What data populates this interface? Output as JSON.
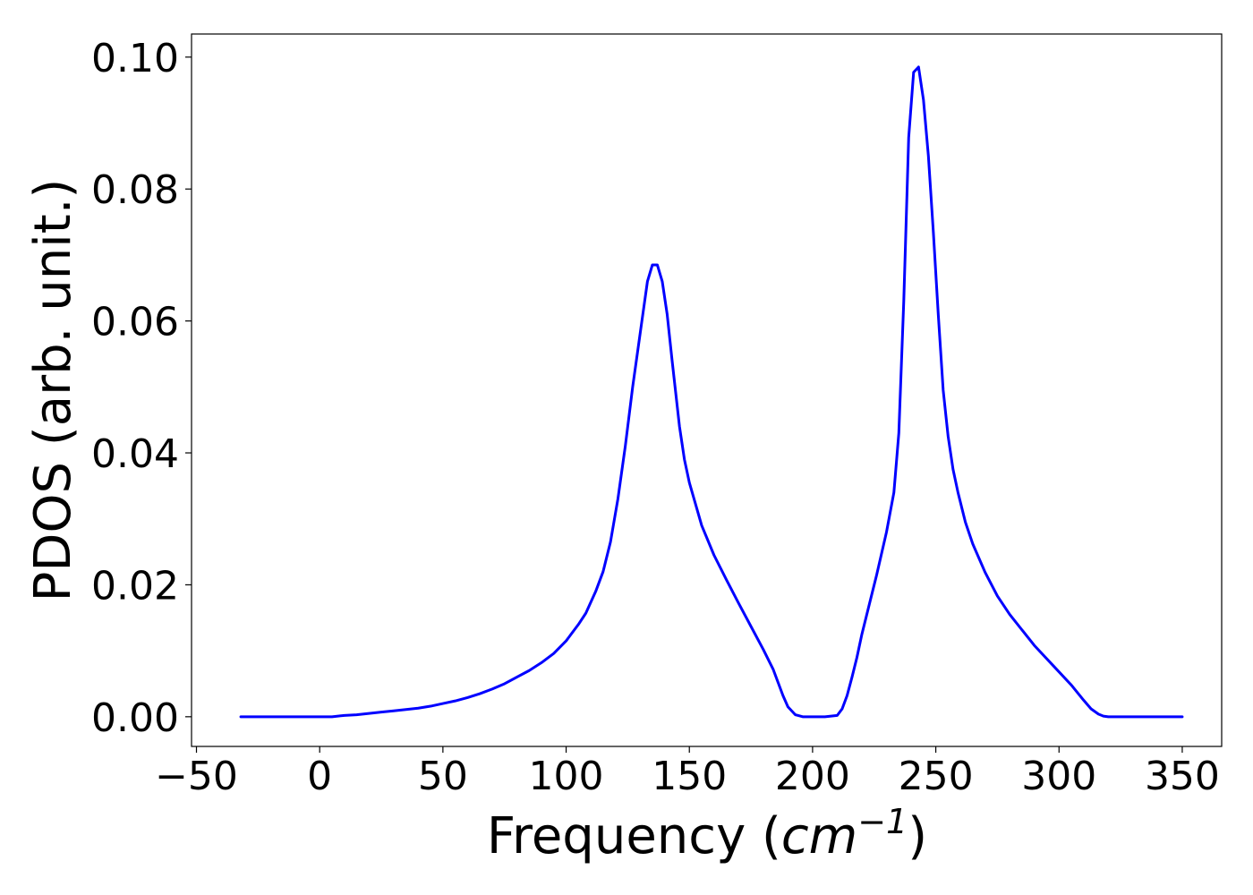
{
  "chart_data": {
    "type": "line",
    "title": "",
    "xlabel": {
      "prefix": "Frequency (",
      "unit_base": "cm",
      "unit_exponent": "−1",
      "suffix": ")"
    },
    "ylabel": "PDOS (arb. unit.)",
    "xlim": [
      -52,
      366
    ],
    "ylim": [
      -0.0045,
      0.1035
    ],
    "x_ticks": [
      -50,
      0,
      50,
      100,
      150,
      200,
      250,
      300,
      350
    ],
    "x_tick_labels": [
      "−50",
      "0",
      "50",
      "100",
      "150",
      "200",
      "250",
      "300",
      "350"
    ],
    "y_ticks": [
      0.0,
      0.02,
      0.04,
      0.06,
      0.08,
      0.1
    ],
    "y_tick_labels": [
      "0.00",
      "0.02",
      "0.04",
      "0.06",
      "0.08",
      "0.10"
    ],
    "grid": false,
    "legend": "none",
    "series": [
      {
        "color": "#0000ff",
        "x": [
          -32,
          -20,
          -10,
          0,
          5,
          10,
          15,
          20,
          25,
          30,
          35,
          40,
          45,
          50,
          55,
          60,
          65,
          70,
          75,
          80,
          85,
          90,
          95,
          100,
          105,
          108,
          112,
          115,
          118,
          121,
          124,
          127,
          130,
          133,
          135,
          137,
          139,
          141,
          143,
          146,
          148,
          150,
          155,
          160,
          165,
          170,
          175,
          180,
          184,
          186,
          188,
          190,
          193,
          196,
          200,
          205,
          210,
          212,
          214,
          216,
          218,
          220,
          223,
          226,
          230,
          233,
          235,
          237,
          239,
          241,
          243,
          245,
          247,
          249,
          251,
          253,
          255,
          257,
          259,
          262,
          265,
          270,
          275,
          280,
          290,
          300,
          305,
          310,
          313,
          316,
          318,
          320,
          322,
          325,
          330,
          340,
          350
        ],
        "y": [
          0.0,
          0.0,
          0.0,
          0.0,
          0.0,
          0.0002,
          0.0003,
          0.0005,
          0.0007,
          0.0009,
          0.0011,
          0.0013,
          0.0016,
          0.002,
          0.0024,
          0.0029,
          0.0035,
          0.0042,
          0.005,
          0.006,
          0.007,
          0.0082,
          0.0096,
          0.0115,
          0.014,
          0.0157,
          0.019,
          0.022,
          0.0265,
          0.033,
          0.041,
          0.05,
          0.058,
          0.066,
          0.0685,
          0.0685,
          0.066,
          0.061,
          0.054,
          0.044,
          0.039,
          0.0355,
          0.029,
          0.0245,
          0.0208,
          0.0172,
          0.0137,
          0.0102,
          0.0072,
          0.0052,
          0.0032,
          0.0015,
          0.0003,
          0.0,
          0.0,
          0.0,
          0.0002,
          0.0012,
          0.0032,
          0.006,
          0.009,
          0.0125,
          0.017,
          0.0215,
          0.028,
          0.034,
          0.043,
          0.063,
          0.0878,
          0.0977,
          0.0985,
          0.0935,
          0.085,
          0.0735,
          0.061,
          0.0495,
          0.0425,
          0.0375,
          0.034,
          0.0295,
          0.0262,
          0.0219,
          0.0183,
          0.0155,
          0.0108,
          0.0068,
          0.0048,
          0.0025,
          0.0012,
          0.0004,
          0.0001,
          0.0,
          0.0,
          0.0,
          0.0,
          0.0,
          0.0
        ]
      }
    ]
  }
}
